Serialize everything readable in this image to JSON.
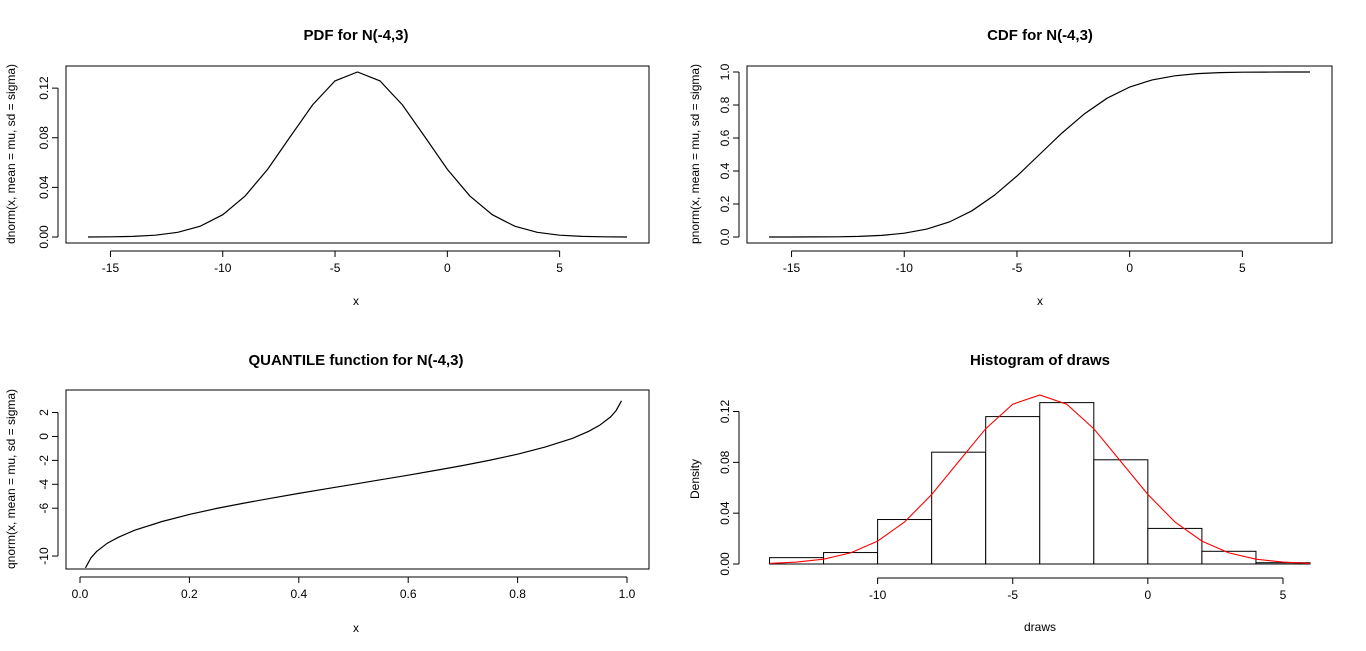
{
  "chart_data": [
    {
      "type": "line",
      "title": "PDF for N(-4,3)",
      "xlabel": "x",
      "ylabel": "dnorm(x, mean = mu, sd = sigma)",
      "xlim": [
        -16,
        8
      ],
      "ylim": [
        0,
        0.133
      ],
      "xticks": [
        -15,
        -10,
        -5,
        0,
        5
      ],
      "yticks": [
        0.0,
        0.04,
        0.08,
        0.12
      ],
      "ytick_labels": [
        "0.00",
        "0.04",
        "0.08",
        "0.12"
      ],
      "series": [
        {
          "name": "pdf",
          "x": [
            -16,
            -15,
            -14,
            -13,
            -12,
            -11,
            -10,
            -9,
            -8,
            -7,
            -6,
            -5,
            -4,
            -3,
            -2,
            -1,
            0,
            1,
            2,
            3,
            4,
            5,
            6,
            7,
            8
          ],
          "y": [
            4e-05,
            0.00016,
            0.00051,
            0.00148,
            0.00379,
            0.00874,
            0.018,
            0.03315,
            0.05467,
            0.08066,
            0.10648,
            0.12579,
            0.13298,
            0.12579,
            0.10648,
            0.08066,
            0.05467,
            0.03315,
            0.018,
            0.00874,
            0.00379,
            0.00148,
            0.00051,
            0.00016,
            4e-05
          ]
        }
      ]
    },
    {
      "type": "line",
      "title": "CDF for N(-4,3)",
      "xlabel": "x",
      "ylabel": "pnorm(x, mean = mu, sd = sigma)",
      "xlim": [
        -16,
        8
      ],
      "ylim": [
        0,
        1
      ],
      "xticks": [
        -15,
        -10,
        -5,
        0,
        5
      ],
      "yticks": [
        0.0,
        0.2,
        0.4,
        0.6,
        0.8,
        1.0
      ],
      "ytick_labels": [
        "0.0",
        "0.2",
        "0.4",
        "0.6",
        "0.8",
        "1.0"
      ],
      "series": [
        {
          "name": "cdf",
          "x": [
            -16,
            -15,
            -14,
            -13,
            -12,
            -11,
            -10,
            -9,
            -8,
            -7,
            -6,
            -5,
            -4,
            -3,
            -2,
            -1,
            0,
            1,
            2,
            3,
            4,
            5,
            6,
            7,
            8
          ],
          "y": [
            3e-05,
            0.00012,
            0.00043,
            0.00135,
            0.00383,
            0.00982,
            0.02275,
            0.04779,
            0.09121,
            0.15866,
            0.25249,
            0.36944,
            0.5,
            0.63056,
            0.74751,
            0.84134,
            0.90879,
            0.95221,
            0.97725,
            0.99018,
            0.99617,
            0.99865,
            0.99957,
            0.99988,
            0.99997
          ]
        }
      ]
    },
    {
      "type": "line",
      "title": "QUANTILE function for N(-4,3)",
      "xlabel": "x",
      "ylabel": "qnorm(x, mean = mu, sd = sigma)",
      "xlim": [
        0,
        1
      ],
      "ylim": [
        -11,
        3.3
      ],
      "xticks": [
        0.0,
        0.2,
        0.4,
        0.6,
        0.8,
        1.0
      ],
      "xtick_labels": [
        "0.0",
        "0.2",
        "0.4",
        "0.6",
        "0.8",
        "1.0"
      ],
      "yticks": [
        -10,
        -6,
        -4,
        -2,
        0,
        2
      ],
      "ytick_labels": [
        "-10",
        "-6",
        "-4",
        "-2",
        "0",
        "2"
      ],
      "series": [
        {
          "name": "quantile",
          "x": [
            0.01,
            0.02,
            0.03,
            0.05,
            0.07,
            0.1,
            0.15,
            0.2,
            0.25,
            0.3,
            0.35,
            0.4,
            0.45,
            0.5,
            0.55,
            0.6,
            0.65,
            0.7,
            0.75,
            0.8,
            0.85,
            0.9,
            0.93,
            0.95,
            0.97,
            0.98,
            0.99
          ],
          "y": [
            -10.98,
            -10.16,
            -9.64,
            -8.93,
            -8.43,
            -7.84,
            -7.11,
            -6.52,
            -6.02,
            -5.57,
            -5.16,
            -4.76,
            -4.38,
            -4.0,
            -3.62,
            -3.24,
            -2.84,
            -2.43,
            -1.98,
            -1.48,
            -0.89,
            -0.16,
            0.43,
            0.93,
            1.64,
            2.16,
            2.98
          ]
        }
      ]
    },
    {
      "type": "bar",
      "title": "Histogram of draws",
      "xlabel": "draws",
      "ylabel": "Density",
      "xlim": [
        -14.5,
        6
      ],
      "ylim": [
        0,
        0.133
      ],
      "xticks": [
        -10,
        -5,
        0,
        5
      ],
      "yticks": [
        0.0,
        0.04,
        0.08,
        0.12
      ],
      "ytick_labels": [
        "0.00",
        "0.04",
        "0.08",
        "0.12"
      ],
      "bins": [
        {
          "from": -14,
          "to": -12,
          "density": 0.005
        },
        {
          "from": -12,
          "to": -10,
          "density": 0.009
        },
        {
          "from": -10,
          "to": -8,
          "density": 0.035
        },
        {
          "from": -8,
          "to": -6,
          "density": 0.088
        },
        {
          "from": -6,
          "to": -4,
          "density": 0.116
        },
        {
          "from": -4,
          "to": -2,
          "density": 0.127
        },
        {
          "from": -2,
          "to": 0,
          "density": 0.082
        },
        {
          "from": 0,
          "to": 2,
          "density": 0.028
        },
        {
          "from": 2,
          "to": 4,
          "density": 0.01
        },
        {
          "from": 4,
          "to": 6,
          "density": 0.001
        }
      ],
      "overlay": {
        "name": "normal density",
        "color": "#ff0000",
        "x": [
          -14,
          -13,
          -12,
          -11,
          -10,
          -9,
          -8,
          -7,
          -6,
          -5,
          -4,
          -3,
          -2,
          -1,
          0,
          1,
          2,
          3,
          4,
          5,
          6
        ],
        "y": [
          0.00051,
          0.00148,
          0.00379,
          0.00874,
          0.018,
          0.03315,
          0.05467,
          0.08066,
          0.10648,
          0.12579,
          0.13298,
          0.12579,
          0.10648,
          0.08066,
          0.05467,
          0.03315,
          0.018,
          0.00874,
          0.00379,
          0.00148,
          0.00051
        ]
      }
    }
  ]
}
